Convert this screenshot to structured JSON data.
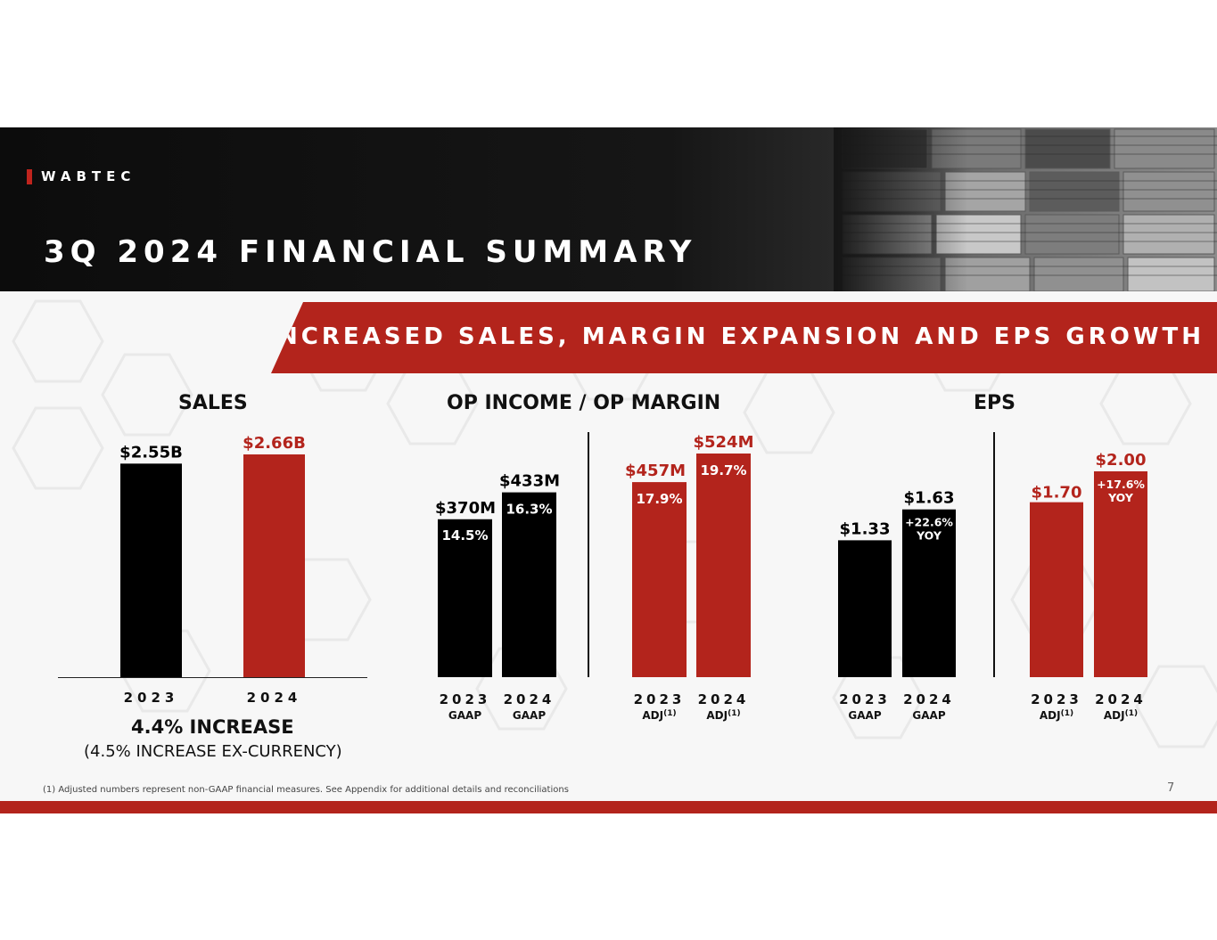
{
  "brand": "WABTEC",
  "title": "3Q 2024 FINANCIAL SUMMARY",
  "banner": "INCREASED SALES, MARGIN EXPANSION AND EPS GROWTH",
  "colors": {
    "accent": "#b3241c",
    "dark": "#000000"
  },
  "sections": {
    "sales": "SALES",
    "op_income": "OP INCOME / OP MARGIN",
    "eps": "EPS"
  },
  "sales_note": {
    "increase": "4.4% INCREASE",
    "ex_currency": "(4.5% INCREASE EX-CURRENCY)"
  },
  "footnote": "(1)  Adjusted numbers represent non-GAAP financial measures.  See Appendix for additional details and reconciliations",
  "page_number": "7",
  "chart_data": [
    {
      "type": "bar",
      "title": "SALES",
      "unit": "$B",
      "categories": [
        "2023",
        "2024"
      ],
      "values": [
        2.55,
        2.66
      ],
      "value_labels": [
        "$2.55B",
        "$2.66B"
      ],
      "colors": [
        "#000000",
        "#b3241c"
      ],
      "ylim": [
        0,
        2.8
      ]
    },
    {
      "type": "bar",
      "title": "OP INCOME / OP MARGIN",
      "unit": "$M",
      "categories": [
        "2023",
        "2024",
        "2023",
        "2024"
      ],
      "category_sublabels": [
        "GAAP",
        "GAAP",
        "ADJ",
        "ADJ"
      ],
      "superscripts": [
        "",
        "",
        "(1)",
        "(1)"
      ],
      "values": [
        370,
        433,
        457,
        524
      ],
      "value_labels": [
        "$370M",
        "$433M",
        "$457M",
        "$524M"
      ],
      "margins": [
        "14.5%",
        "16.3%",
        "17.9%",
        "19.7%"
      ],
      "colors": [
        "#000000",
        "#000000",
        "#b3241c",
        "#b3241c"
      ],
      "ylim": [
        0,
        600
      ]
    },
    {
      "type": "bar",
      "title": "EPS",
      "unit": "$",
      "categories": [
        "2023",
        "2024",
        "2023",
        "2024"
      ],
      "category_sublabels": [
        "GAAP",
        "GAAP",
        "ADJ",
        "ADJ"
      ],
      "superscripts": [
        "",
        "",
        "(1)",
        "(1)"
      ],
      "values": [
        1.33,
        1.63,
        1.7,
        2.0
      ],
      "value_labels": [
        "$1.33",
        "$1.63",
        "$1.70",
        "$2.00"
      ],
      "yoy": [
        "",
        "+22.6%\nYOY",
        "",
        "+17.6%\nYOY"
      ],
      "colors": [
        "#000000",
        "#000000",
        "#b3241c",
        "#b3241c"
      ],
      "ylim": [
        0,
        2.3
      ]
    }
  ]
}
